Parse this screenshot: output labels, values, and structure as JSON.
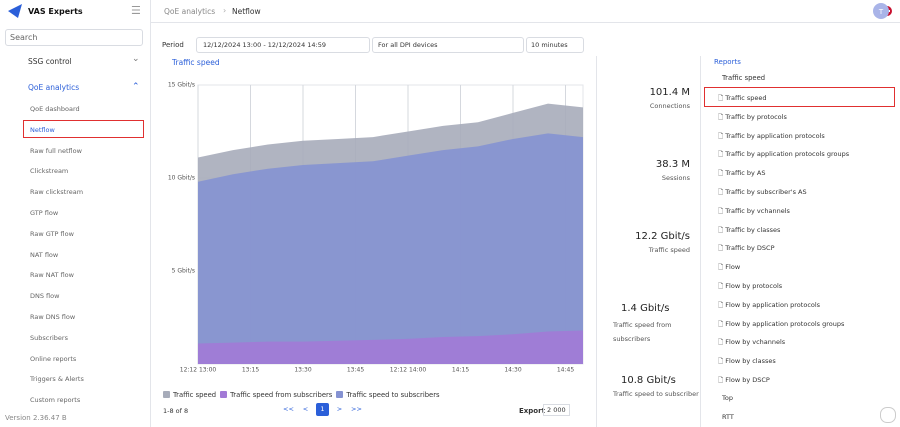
{
  "sidebar": {
    "logo": "VAS Experts",
    "search": "Search",
    "menu": [
      "SSG control",
      "QoE analytics"
    ],
    "submenu": [
      "QoE dashboard",
      "Netflow",
      "Raw full netflow",
      "Clickstream",
      "Raw clickstream",
      "GTP flow",
      "Raw GTP flow",
      "NAT flow",
      "Raw NAT flow",
      "DNS flow",
      "Raw DNS flow",
      "Subscribers",
      "Online reports",
      "Triggers & Alerts",
      "Custom reports"
    ],
    "version": "Version 2.36.47 B"
  },
  "breadcrumb": [
    "QoE analytics",
    "Netflow"
  ],
  "filters": {
    "period_label": "Period",
    "period": "12/12/2024 13:00 - 12/12/2024 14:59",
    "devices": "For all DPI devices",
    "interval": "10 minutes"
  },
  "chart_data": {
    "type": "area",
    "title": "Traffic speed",
    "x": [
      "13:00",
      "13:10",
      "13:20",
      "13:30",
      "13:40",
      "13:50",
      "14:00",
      "14:10",
      "14:20",
      "14:30",
      "14:40",
      "14:50"
    ],
    "xlim": [
      "13:00",
      "14:50"
    ],
    "xticks": [
      {
        "value": "13:00",
        "label": "12:12 13:00"
      },
      "13:15",
      "13:30",
      "13:45",
      {
        "value": "14:00",
        "label": "12:12 14:00"
      },
      "14:15",
      "14:30",
      "14:45"
    ],
    "ylim": [
      0,
      15
    ],
    "yticks": [
      {
        "value": 5,
        "label": "5 Gbit/s"
      },
      {
        "value": 10,
        "label": "10 Gbit/s"
      },
      {
        "value": 15,
        "label": "15 Gbit/s"
      }
    ],
    "grid": true,
    "series": [
      {
        "name": "Traffic speed",
        "color": "#a7acba",
        "values": [
          11.1,
          11.5,
          11.8,
          12.0,
          12.1,
          12.2,
          12.5,
          12.8,
          13.0,
          13.5,
          14.0,
          13.8
        ]
      },
      {
        "name": "Traffic speed from subscribers",
        "color": "#a27ad6",
        "values": [
          1.1,
          1.15,
          1.2,
          1.2,
          1.25,
          1.3,
          1.35,
          1.45,
          1.5,
          1.6,
          1.75,
          1.8
        ]
      },
      {
        "name": "Traffic speed to subscribers",
        "color": "#8592d2",
        "values": [
          9.8,
          10.2,
          10.5,
          10.7,
          10.8,
          10.9,
          11.2,
          11.5,
          11.7,
          12.1,
          12.4,
          12.2
        ]
      }
    ]
  },
  "pager": {
    "range": "1-8 of 8",
    "pages": [
      "<<",
      "<",
      "1",
      ">",
      ">>"
    ],
    "export": "Export",
    "page_size": "2 000"
  },
  "stats": [
    {
      "value": "101.4 M",
      "label": "Connections"
    },
    {
      "value": "38.3 M",
      "label": "Sessions"
    },
    {
      "value": "12.2 Gbit/s",
      "label": "Traffic speed"
    },
    {
      "value": "1.4 Gbit/s",
      "label": "Traffic speed from subscribers"
    },
    {
      "value": "10.8 Gbit/s",
      "label": "Traffic speed to subscriber"
    }
  ],
  "reports": {
    "title": "Reports",
    "folder": "Traffic speed",
    "items": [
      "Traffic speed",
      "Traffic by protocols",
      "Traffic by application protocols",
      "Traffic by application protocols groups",
      "Traffic by AS",
      "Traffic by subscriber's AS",
      "Traffic by vchannels",
      "Traffic by classes",
      "Traffic by DSCP",
      "Flow",
      "Flow by protocols",
      "Flow by application protocols",
      "Flow by application protocols groups",
      "Flow by vchannels",
      "Flow by classes",
      "Flow by DSCP"
    ],
    "folders": [
      "Top",
      "RTT"
    ]
  }
}
